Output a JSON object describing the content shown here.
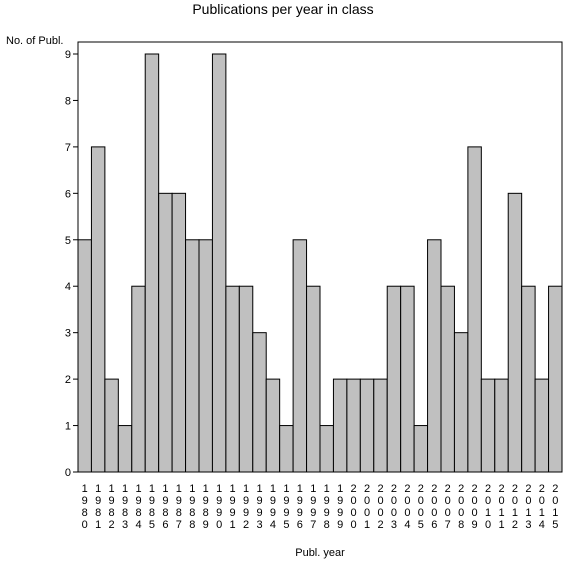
{
  "chart_data": {
    "type": "bar",
    "title": "Publications per year in class",
    "ylabel": "No. of Publ.",
    "xlabel": "Publ. year",
    "ylim": [
      0,
      9
    ],
    "yticks": [
      "0",
      "1",
      "2",
      "3",
      "4",
      "5",
      "6",
      "7",
      "8",
      "9"
    ],
    "grid": false,
    "categories": [
      "1980",
      "1981",
      "1982",
      "1983",
      "1984",
      "1985",
      "1986",
      "1987",
      "1988",
      "1989",
      "1990",
      "1991",
      "1992",
      "1993",
      "1994",
      "1995",
      "1996",
      "1997",
      "1998",
      "1999",
      "2000",
      "2001",
      "2002",
      "2003",
      "2004",
      "2005",
      "2006",
      "2007",
      "2008",
      "2009",
      "2010",
      "2011",
      "2012",
      "2013",
      "2014",
      "2015"
    ],
    "values": [
      5,
      7,
      2,
      1,
      4,
      9,
      6,
      6,
      5,
      5,
      9,
      4,
      4,
      3,
      2,
      1,
      5,
      4,
      1,
      2,
      2,
      2,
      2,
      4,
      4,
      1,
      5,
      4,
      3,
      7,
      2,
      2,
      6,
      4,
      2,
      4
    ]
  }
}
